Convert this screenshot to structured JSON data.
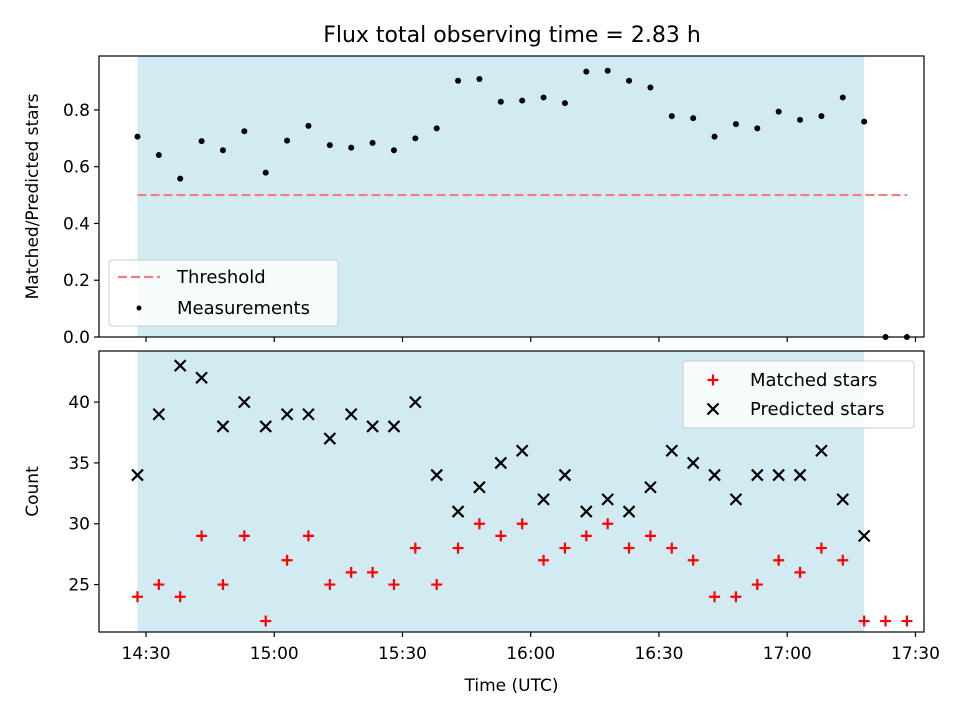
{
  "figure": {
    "title": "Flux total observing time = 2.83 h"
  },
  "chart_data": [
    {
      "type": "scatter",
      "panel": "top",
      "title": "Flux total observing time = 2.83 h",
      "xlabel": "",
      "ylabel": "Matched/Predicted stars",
      "xlim": [
        "14:19",
        "17:32"
      ],
      "ylim": [
        0.0,
        0.99
      ],
      "yticks": [
        0.0,
        0.2,
        0.4,
        0.6,
        0.8
      ],
      "ytick_labels": [
        "0.0",
        "0.2",
        "0.4",
        "0.6",
        "0.8"
      ],
      "xticks": [
        "14:30",
        "15:00",
        "15:30",
        "16:00",
        "16:30",
        "17:00",
        "17:30"
      ],
      "shaded_interval": {
        "from": "14:28",
        "to": "17:18",
        "color": "#add8e6"
      },
      "legend": {
        "location": "lower left",
        "entries": [
          "Threshold",
          "Measurements"
        ]
      },
      "threshold": {
        "name": "Threshold",
        "value": 0.5,
        "x_from": "14:28",
        "x_to": "17:28",
        "color": "#f08080",
        "style": "dashed"
      },
      "series": [
        {
          "name": "Measurements",
          "marker": "dot",
          "color": "#000000",
          "x": [
            "14:28",
            "14:33",
            "14:38",
            "14:43",
            "14:48",
            "14:53",
            "14:58",
            "15:03",
            "15:08",
            "15:13",
            "15:18",
            "15:23",
            "15:28",
            "15:33",
            "15:38",
            "15:43",
            "15:48",
            "15:53",
            "15:58",
            "16:03",
            "16:08",
            "16:13",
            "16:18",
            "16:23",
            "16:28",
            "16:33",
            "16:38",
            "16:43",
            "16:48",
            "16:53",
            "16:58",
            "17:03",
            "17:08",
            "17:13",
            "17:18",
            "17:23",
            "17:28"
          ],
          "y": [
            0.706,
            0.641,
            0.558,
            0.69,
            0.658,
            0.725,
            0.579,
            0.692,
            0.744,
            0.676,
            0.667,
            0.684,
            0.658,
            0.7,
            0.735,
            0.903,
            0.909,
            0.829,
            0.833,
            0.844,
            0.824,
            0.935,
            0.938,
            0.903,
            0.879,
            0.778,
            0.771,
            0.706,
            0.75,
            0.735,
            0.794,
            0.765,
            0.778,
            0.844,
            0.759,
            0.0,
            0.0
          ]
        }
      ]
    },
    {
      "type": "scatter",
      "panel": "bottom",
      "xlabel": "Time (UTC)",
      "ylabel": "Count",
      "xlim": [
        "14:19",
        "17:32"
      ],
      "ylim": [
        21.1,
        44.2
      ],
      "yticks": [
        25,
        30,
        35,
        40
      ],
      "ytick_labels": [
        "25",
        "30",
        "35",
        "40"
      ],
      "xticks": [
        "14:30",
        "15:00",
        "15:30",
        "16:00",
        "16:30",
        "17:00",
        "17:30"
      ],
      "xtick_labels": [
        "14:30",
        "15:00",
        "15:30",
        "16:00",
        "16:30",
        "17:00",
        "17:30"
      ],
      "shaded_interval": {
        "from": "14:28",
        "to": "17:18",
        "color": "#add8e6"
      },
      "legend": {
        "location": "upper right",
        "entries": [
          "Matched stars",
          "Predicted stars"
        ]
      },
      "series": [
        {
          "name": "Matched stars",
          "marker": "+",
          "color": "#ff0000",
          "x": [
            "14:28",
            "14:33",
            "14:38",
            "14:43",
            "14:48",
            "14:53",
            "14:58",
            "15:03",
            "15:08",
            "15:13",
            "15:18",
            "15:23",
            "15:28",
            "15:33",
            "15:38",
            "15:43",
            "15:48",
            "15:53",
            "15:58",
            "16:03",
            "16:08",
            "16:13",
            "16:18",
            "16:23",
            "16:28",
            "16:33",
            "16:38",
            "16:43",
            "16:48",
            "16:53",
            "16:58",
            "17:03",
            "17:08",
            "17:13",
            "17:18",
            "17:23",
            "17:28"
          ],
          "y": [
            24,
            25,
            24,
            29,
            25,
            29,
            22,
            27,
            29,
            25,
            26,
            26,
            25,
            28,
            25,
            28,
            30,
            29,
            30,
            27,
            28,
            29,
            30,
            28,
            29,
            28,
            27,
            24,
            24,
            25,
            27,
            26,
            28,
            27,
            22,
            22,
            22
          ]
        },
        {
          "name": "Predicted stars",
          "marker": "x",
          "color": "#000000",
          "x": [
            "14:28",
            "14:33",
            "14:38",
            "14:43",
            "14:48",
            "14:53",
            "14:58",
            "15:03",
            "15:08",
            "15:13",
            "15:18",
            "15:23",
            "15:28",
            "15:33",
            "15:38",
            "15:43",
            "15:48",
            "15:53",
            "15:58",
            "16:03",
            "16:08",
            "16:13",
            "16:18",
            "16:23",
            "16:28",
            "16:33",
            "16:38",
            "16:43",
            "16:48",
            "16:53",
            "16:58",
            "17:03",
            "17:08",
            "17:13",
            "17:18"
          ],
          "y": [
            34,
            39,
            43,
            42,
            38,
            40,
            38,
            39,
            39,
            37,
            39,
            38,
            38,
            40,
            34,
            31,
            33,
            35,
            36,
            32,
            34,
            31,
            32,
            31,
            33,
            36,
            35,
            34,
            32,
            34,
            34,
            34,
            36,
            32,
            29
          ]
        }
      ]
    }
  ]
}
